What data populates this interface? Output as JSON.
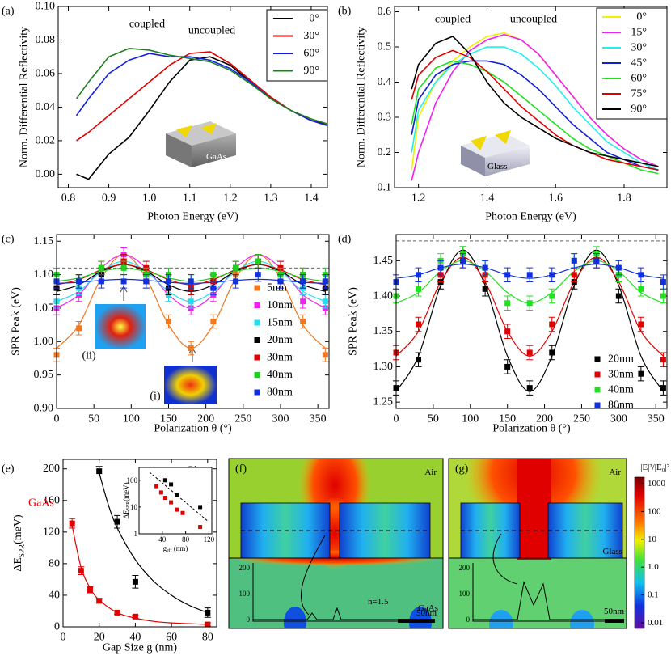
{
  "chart_data": [
    {
      "type": "line",
      "panel": "(a)",
      "xlabel": "Photon Energy (eV)",
      "ylabel": "Norm. Differential Reflectivity",
      "annotations": [
        "coupled",
        "uncoupled",
        "GaAs"
      ],
      "x": [
        0.82,
        0.85,
        0.9,
        0.95,
        1.0,
        1.05,
        1.1,
        1.15,
        1.2,
        1.25,
        1.3,
        1.35,
        1.4,
        1.44
      ],
      "series": [
        {
          "name": "0°",
          "color": "#000000",
          "values": [
            0.0,
            -0.003,
            0.012,
            0.022,
            0.038,
            0.055,
            0.068,
            0.07,
            0.065,
            0.055,
            0.045,
            0.038,
            0.032,
            0.03
          ]
        },
        {
          "name": "30°",
          "color": "#e00000",
          "values": [
            0.02,
            0.025,
            0.035,
            0.045,
            0.055,
            0.065,
            0.072,
            0.073,
            0.066,
            0.056,
            0.046,
            0.038,
            0.032,
            0.029
          ]
        },
        {
          "name": "60°",
          "color": "#1020e0",
          "values": [
            0.035,
            0.045,
            0.06,
            0.068,
            0.072,
            0.07,
            0.07,
            0.068,
            0.063,
            0.055,
            0.045,
            0.038,
            0.032,
            0.029
          ]
        },
        {
          "name": "90°",
          "color": "#208020",
          "values": [
            0.045,
            0.055,
            0.07,
            0.075,
            0.074,
            0.071,
            0.069,
            0.067,
            0.062,
            0.054,
            0.045,
            0.038,
            0.033,
            0.03
          ]
        }
      ],
      "xlim": [
        0.775,
        1.44
      ],
      "ylim": [
        -0.008,
        0.1
      ],
      "xticks": [
        0.8,
        0.9,
        {
          "value": 1,
          "label": "1.0"
        },
        1.1,
        1.2,
        1.3,
        1.4
      ],
      "yticks": [
        {
          "value": 0,
          "label": "0.00"
        },
        {
          "value": 0.02,
          "label": "0.02"
        },
        {
          "value": 0.04,
          "label": "0.04"
        },
        {
          "value": 0.06,
          "label": "0.06"
        },
        {
          "value": 0.08,
          "label": "0.08"
        },
        {
          "value": 0.1,
          "label": "0.10"
        }
      ]
    },
    {
      "type": "line",
      "panel": "(b)",
      "xlabel": "Photon Energy (eV)",
      "ylabel": "Norm. Differential Reflectivity",
      "annotations": [
        "coupled",
        "uncoupled",
        "Glass"
      ],
      "x": [
        1.18,
        1.2,
        1.25,
        1.3,
        1.35,
        1.4,
        1.45,
        1.5,
        1.55,
        1.6,
        1.65,
        1.7,
        1.75,
        1.8,
        1.85,
        1.9
      ],
      "series": [
        {
          "name": "0°",
          "color": "#f0f000",
          "values": [
            0.15,
            0.3,
            0.4,
            0.46,
            0.5,
            0.53,
            0.54,
            0.52,
            0.48,
            0.42,
            0.36,
            0.3,
            0.25,
            0.21,
            0.18,
            0.16
          ]
        },
        {
          "name": "15°",
          "color": "#f020f0",
          "values": [
            0.12,
            0.2,
            0.34,
            0.43,
            0.49,
            0.52,
            0.535,
            0.52,
            0.48,
            0.42,
            0.36,
            0.3,
            0.25,
            0.21,
            0.18,
            0.16
          ]
        },
        {
          "name": "30°",
          "color": "#20f0f0",
          "values": [
            0.2,
            0.32,
            0.4,
            0.45,
            0.48,
            0.5,
            0.5,
            0.48,
            0.44,
            0.39,
            0.33,
            0.28,
            0.23,
            0.2,
            0.17,
            0.15
          ]
        },
        {
          "name": "45°",
          "color": "#1020d0",
          "values": [
            0.25,
            0.35,
            0.42,
            0.45,
            0.46,
            0.46,
            0.45,
            0.42,
            0.38,
            0.33,
            0.28,
            0.24,
            0.2,
            0.18,
            0.16,
            0.15
          ]
        },
        {
          "name": "60°",
          "color": "#20e020",
          "values": [
            0.28,
            0.38,
            0.44,
            0.46,
            0.45,
            0.43,
            0.4,
            0.36,
            0.32,
            0.28,
            0.24,
            0.21,
            0.19,
            0.17,
            0.15,
            0.14
          ]
        },
        {
          "name": "75°",
          "color": "#e00000",
          "values": [
            0.35,
            0.42,
            0.47,
            0.49,
            0.47,
            0.43,
            0.38,
            0.33,
            0.29,
            0.25,
            0.22,
            0.2,
            0.18,
            0.17,
            0.16,
            0.15
          ]
        },
        {
          "name": "90°",
          "color": "#000000",
          "values": [
            0.38,
            0.45,
            0.51,
            0.53,
            0.48,
            0.4,
            0.34,
            0.3,
            0.27,
            0.24,
            0.22,
            0.2,
            0.19,
            0.18,
            0.17,
            0.16
          ]
        }
      ],
      "xlim": [
        1.13,
        1.925
      ],
      "ylim": [
        0.1,
        0.615
      ],
      "xticks": [
        1.2,
        1.4,
        1.6,
        1.8
      ],
      "yticks": [
        0.1,
        0.2,
        0.3,
        0.4,
        0.5,
        0.6
      ]
    },
    {
      "type": "scatter",
      "panel": "(c)",
      "xlabel": "Polarization θ (°)",
      "ylabel": "SPR Peak (eV)",
      "annotations": [
        "(ii)",
        "(i)"
      ],
      "reference": 1.11,
      "x": [
        0,
        30,
        60,
        90,
        120,
        150,
        180,
        210,
        240,
        270,
        300,
        330,
        360
      ],
      "series": [
        {
          "name": "5nm",
          "color": "#f07820",
          "error": 0.01,
          "values": [
            0.98,
            1.02,
            1.1,
            1.12,
            1.09,
            1.03,
            0.99,
            1.03,
            1.1,
            1.12,
            1.1,
            1.03,
            0.98
          ],
          "fit": [
            0.99,
            1.025,
            1.095,
            1.13,
            1.095,
            1.025,
            0.99,
            1.025,
            1.095,
            1.13,
            1.095,
            1.025,
            0.99
          ]
        },
        {
          "name": "10nm",
          "color": "#f020f0",
          "error": 0.01,
          "values": [
            1.05,
            1.07,
            1.11,
            1.13,
            1.1,
            1.07,
            1.05,
            1.07,
            1.11,
            1.12,
            1.11,
            1.06,
            1.05
          ],
          "fit": [
            1.05,
            1.07,
            1.11,
            1.13,
            1.11,
            1.07,
            1.05,
            1.07,
            1.11,
            1.13,
            1.11,
            1.07,
            1.05
          ]
        },
        {
          "name": "15nm",
          "color": "#20e0f0",
          "error": 0.01,
          "values": [
            1.06,
            1.08,
            1.1,
            1.12,
            1.11,
            1.07,
            1.06,
            1.08,
            1.11,
            1.12,
            1.1,
            1.08,
            1.06
          ],
          "fit": [
            1.06,
            1.075,
            1.105,
            1.12,
            1.105,
            1.075,
            1.06,
            1.075,
            1.105,
            1.12,
            1.105,
            1.075,
            1.06
          ]
        },
        {
          "name": "20nm",
          "color": "#000000",
          "error": 0.01,
          "values": [
            1.08,
            1.09,
            1.1,
            1.12,
            1.1,
            1.08,
            1.08,
            1.09,
            1.11,
            1.12,
            1.1,
            1.09,
            1.08
          ],
          "fit": [
            1.075,
            1.085,
            1.105,
            1.115,
            1.105,
            1.085,
            1.075,
            1.085,
            1.105,
            1.115,
            1.105,
            1.085,
            1.075
          ]
        },
        {
          "name": "30nm",
          "color": "#e00000",
          "error": 0.01,
          "values": [
            1.09,
            1.09,
            1.11,
            1.12,
            1.11,
            1.09,
            1.08,
            1.09,
            1.11,
            1.12,
            1.11,
            1.1,
            1.09
          ],
          "fit": [
            1.085,
            1.0925,
            1.1075,
            1.115,
            1.1075,
            1.0925,
            1.085,
            1.0925,
            1.1075,
            1.115,
            1.1075,
            1.0925,
            1.085
          ]
        },
        {
          "name": "40nm",
          "color": "#20d020",
          "error": 0.01,
          "values": [
            1.1,
            1.09,
            1.11,
            1.11,
            1.1,
            1.1,
            1.09,
            1.1,
            1.11,
            1.12,
            1.1,
            1.1,
            1.1
          ],
          "fit": [
            1.09,
            1.095,
            1.105,
            1.11,
            1.105,
            1.095,
            1.09,
            1.095,
            1.105,
            1.11,
            1.105,
            1.095,
            1.09
          ]
        },
        {
          "name": "80nm",
          "color": "#1030e0",
          "error": 0.01,
          "values": [
            1.09,
            1.09,
            1.09,
            1.09,
            1.09,
            1.09,
            1.09,
            1.08,
            1.09,
            1.1,
            1.09,
            1.09,
            1.09
          ],
          "fit": [
            1.087,
            1.0885,
            1.0915,
            1.093,
            1.0915,
            1.0885,
            1.087,
            1.0885,
            1.0915,
            1.093,
            1.0915,
            1.0885,
            1.087
          ]
        }
      ],
      "xlim": [
        0,
        365
      ],
      "ylim": [
        0.9,
        1.16
      ],
      "xticks": [
        0,
        50,
        100,
        150,
        200,
        250,
        300,
        350
      ],
      "yticks": [
        {
          "value": 0.9,
          "label": "0.90"
        },
        0.95,
        {
          "value": 1,
          "label": "1.00"
        },
        1.05,
        {
          "value": 1.1,
          "label": "1.10"
        },
        1.15
      ]
    },
    {
      "type": "scatter",
      "panel": "(d)",
      "xlabel": "Polarization θ (°)",
      "ylabel": "SPR Peak (eV)",
      "annotations": [],
      "reference": 1.478,
      "x": [
        0,
        30,
        60,
        90,
        120,
        150,
        180,
        210,
        240,
        270,
        300,
        330,
        360
      ],
      "series": [
        {
          "name": "20nm",
          "color": "#000000",
          "error": 0.01,
          "values": [
            1.27,
            1.31,
            1.42,
            1.46,
            1.41,
            1.3,
            1.27,
            1.32,
            1.42,
            1.45,
            1.4,
            1.29,
            1.27
          ],
          "fit": [
            1.265,
            1.315,
            1.415,
            1.465,
            1.415,
            1.315,
            1.265,
            1.315,
            1.415,
            1.465,
            1.415,
            1.315,
            1.265
          ]
        },
        {
          "name": "30nm",
          "color": "#e00000",
          "error": 0.01,
          "values": [
            1.32,
            1.36,
            1.43,
            1.45,
            1.43,
            1.35,
            1.32,
            1.36,
            1.43,
            1.45,
            1.43,
            1.36,
            1.31
          ],
          "fit": [
            1.315,
            1.35,
            1.42,
            1.455,
            1.42,
            1.35,
            1.315,
            1.35,
            1.42,
            1.455,
            1.42,
            1.35,
            1.315
          ]
        },
        {
          "name": "40nm",
          "color": "#20e020",
          "error": 0.01,
          "values": [
            1.4,
            1.41,
            1.45,
            1.46,
            1.44,
            1.39,
            1.39,
            1.4,
            1.45,
            1.46,
            1.43,
            1.41,
            1.4
          ],
          "fit": [
            1.39,
            1.405,
            1.435,
            1.45,
            1.435,
            1.405,
            1.39,
            1.405,
            1.435,
            1.45,
            1.435,
            1.405,
            1.39
          ]
        },
        {
          "name": "80nm",
          "color": "#1030e0",
          "error": 0.01,
          "values": [
            1.42,
            1.43,
            1.44,
            1.45,
            1.44,
            1.43,
            1.43,
            1.43,
            1.45,
            1.45,
            1.44,
            1.43,
            1.42
          ],
          "fit": [
            1.425,
            1.43,
            1.44,
            1.445,
            1.44,
            1.43,
            1.425,
            1.43,
            1.44,
            1.445,
            1.44,
            1.43,
            1.425
          ]
        }
      ],
      "xlim": [
        0,
        365
      ],
      "ylim": [
        1.241,
        1.487
      ],
      "xticks": [
        0,
        50,
        100,
        150,
        200,
        250,
        300,
        350
      ],
      "yticks": [
        1.25,
        {
          "value": 1.3,
          "label": "1.30"
        },
        1.35,
        {
          "value": 1.4,
          "label": "1.40"
        },
        1.45
      ]
    },
    {
      "type": "scatter",
      "panel": "(e)",
      "xlabel": "Gap Size g (nm)",
      "ylabel": [
        "ΔE",
        "SPR",
        "(meV)"
      ],
      "annotations": [],
      "series": [
        {
          "name": "Glass",
          "color": "#000000",
          "x": [
            20,
            30,
            40,
            80
          ],
          "values": [
            197,
            133,
            57,
            18
          ],
          "errors": [
            6,
            8,
            8,
            6
          ],
          "fit_x": [
            20,
            25,
            30,
            40,
            50,
            60,
            70,
            80
          ],
          "fit": [
            195,
            155,
            125,
            85,
            58,
            40,
            27,
            18
          ]
        },
        {
          "name": "GaAs",
          "color": "#e00000",
          "x": [
            5,
            10,
            15,
            20,
            30,
            40,
            80
          ],
          "values": [
            131,
            71,
            47,
            33,
            18,
            13,
            3
          ],
          "errors": [
            6,
            5,
            4,
            3,
            2,
            2,
            2
          ],
          "fit_x": [
            5,
            10,
            15,
            20,
            30,
            40,
            50,
            60,
            70,
            80
          ],
          "fit": [
            128,
            75,
            49,
            34,
            18,
            11,
            7,
            5,
            4,
            3
          ]
        }
      ],
      "xlim": [
        0,
        85
      ],
      "ylim": [
        0,
        212
      ],
      "xticks": [
        0,
        20,
        40,
        60,
        80
      ],
      "yticks": [
        0,
        40,
        80,
        120,
        160,
        200
      ],
      "inset": {
        "xlabel": [
          "g",
          "eff",
          " (nm)"
        ],
        "ylabel": [
          "ΔE",
          "SPR",
          "(meV)"
        ],
        "log_y": true,
        "xlim": [
          0,
          125
        ],
        "ylim": [
          1,
          300
        ],
        "xticks": [
          40,
          80,
          120
        ],
        "yticks": [
          1,
          10,
          100
        ],
        "series": [
          {
            "color": "#000000",
            "x": [
              45,
              55,
              65,
              105
            ],
            "values": [
              100,
              70,
              28,
              10
            ]
          },
          {
            "color": "#e00000",
            "x": [
              30,
              38,
              45,
              55,
              65,
              75,
              105
            ],
            "values": [
              60,
              35,
              22,
              15,
              8,
              6,
              1.8
            ]
          }
        ],
        "guide": {
          "x": [
            18,
            118
          ],
          "y": [
            200,
            3
          ]
        }
      }
    }
  ],
  "field_maps": {
    "f": {
      "panel": "(f)",
      "top_label": "Air",
      "substrate_label": "GaAs",
      "index_label": "n=1.5",
      "scale_label": "50nm",
      "profile_ticks": [
        200,
        100,
        0
      ]
    },
    "g": {
      "panel": "(g)",
      "top_label": "Air",
      "substrate_label": "Glass",
      "scale_label": "50nm",
      "profile_ticks": [
        200,
        100,
        0
      ]
    },
    "colorbar": {
      "label": "|E|²/|E₀|²",
      "lim": [
        0.0063,
        1700
      ],
      "ticks": [
        1000,
        100,
        10,
        {
          "value": 1,
          "label": "1.0"
        },
        0.1,
        0.01
      ]
    }
  }
}
